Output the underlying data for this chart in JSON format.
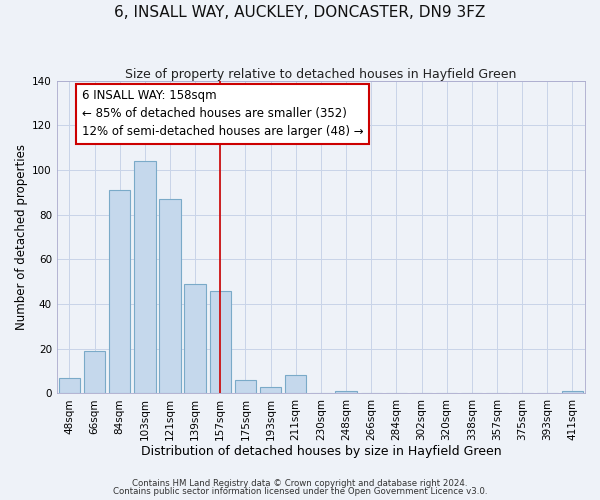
{
  "title": "6, INSALL WAY, AUCKLEY, DONCASTER, DN9 3FZ",
  "subtitle": "Size of property relative to detached houses in Hayfield Green",
  "xlabel": "Distribution of detached houses by size in Hayfield Green",
  "ylabel": "Number of detached properties",
  "footer_lines": [
    "Contains HM Land Registry data © Crown copyright and database right 2024.",
    "Contains public sector information licensed under the Open Government Licence v3.0."
  ],
  "bar_labels": [
    "48sqm",
    "66sqm",
    "84sqm",
    "103sqm",
    "121sqm",
    "139sqm",
    "157sqm",
    "175sqm",
    "193sqm",
    "211sqm",
    "230sqm",
    "248sqm",
    "266sqm",
    "284sqm",
    "302sqm",
    "320sqm",
    "338sqm",
    "357sqm",
    "375sqm",
    "393sqm",
    "411sqm"
  ],
  "bar_values": [
    7,
    19,
    91,
    104,
    87,
    49,
    46,
    6,
    3,
    8,
    0,
    1,
    0,
    0,
    0,
    0,
    0,
    0,
    0,
    0,
    1
  ],
  "bar_color": "#c5d8ec",
  "bar_edge_color": "#7aaac8",
  "highlight_bar_index": 6,
  "highlight_line_color": "#cc0000",
  "annotation_box_text": "6 INSALL WAY: 158sqm\n← 85% of detached houses are smaller (352)\n12% of semi-detached houses are larger (48) →",
  "annotation_fontsize": 8.5,
  "ylim": [
    0,
    140
  ],
  "yticks": [
    0,
    20,
    40,
    60,
    80,
    100,
    120,
    140
  ],
  "title_fontsize": 11,
  "subtitle_fontsize": 9,
  "xlabel_fontsize": 9,
  "ylabel_fontsize": 8.5,
  "tick_fontsize": 7.5,
  "bg_color": "#eef2f8",
  "plot_bg_color": "#eef2f8",
  "grid_color": "#c8d4e8"
}
